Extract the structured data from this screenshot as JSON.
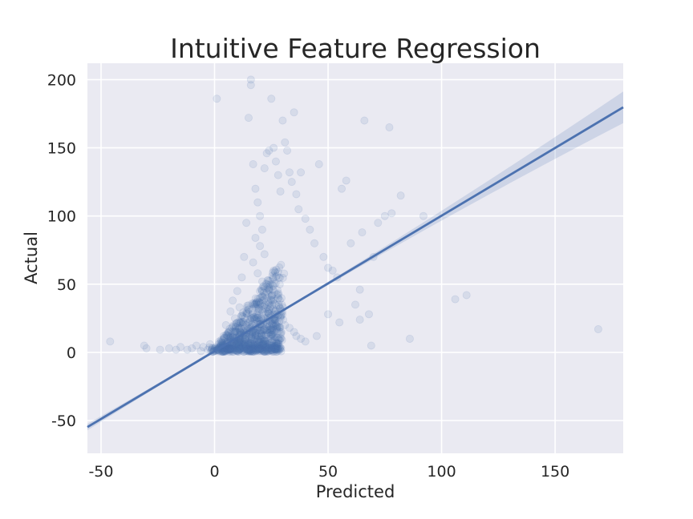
{
  "chart_data": {
    "type": "scatter",
    "title": "Intuitive Feature Regression",
    "xlabel": "Predicted",
    "ylabel": "Actual",
    "xlim": [
      -56,
      180
    ],
    "ylim": [
      -74,
      212
    ],
    "xticks": [
      -50,
      0,
      50,
      100,
      150
    ],
    "yticks": [
      -50,
      0,
      50,
      100,
      150,
      200
    ],
    "grid": true,
    "series": [
      {
        "kind": "points",
        "color": "#4c72b0",
        "points": [
          [
            -46,
            8
          ],
          [
            -31,
            5
          ],
          [
            -30,
            3
          ],
          [
            -24,
            2
          ],
          [
            -20,
            3
          ],
          [
            -17,
            2
          ],
          [
            -15,
            4
          ],
          [
            -12,
            2
          ],
          [
            -10,
            3
          ],
          [
            -8,
            5
          ],
          [
            -6,
            1
          ],
          [
            -5,
            4
          ],
          [
            -3,
            2
          ],
          [
            -2,
            6
          ],
          [
            1,
            186
          ],
          [
            2,
            8
          ],
          [
            3,
            5
          ],
          [
            4,
            12
          ],
          [
            5,
            20
          ],
          [
            6,
            14
          ],
          [
            7,
            30
          ],
          [
            8,
            38
          ],
          [
            9,
            25
          ],
          [
            10,
            45
          ],
          [
            11,
            33
          ],
          [
            12,
            55
          ],
          [
            13,
            70
          ],
          [
            14,
            95
          ],
          [
            15,
            172
          ],
          [
            16,
            200
          ],
          [
            16,
            196
          ],
          [
            17,
            138
          ],
          [
            18,
            120
          ],
          [
            19,
            110
          ],
          [
            20,
            100
          ],
          [
            21,
            90
          ],
          [
            22,
            135
          ],
          [
            23,
            146
          ],
          [
            24,
            148
          ],
          [
            25,
            186
          ],
          [
            26,
            150
          ],
          [
            27,
            140
          ],
          [
            28,
            130
          ],
          [
            29,
            118
          ],
          [
            30,
            170
          ],
          [
            31,
            154
          ],
          [
            32,
            148
          ],
          [
            33,
            132
          ],
          [
            34,
            125
          ],
          [
            35,
            176
          ],
          [
            36,
            116
          ],
          [
            37,
            105
          ],
          [
            38,
            132
          ],
          [
            40,
            98
          ],
          [
            42,
            90
          ],
          [
            44,
            80
          ],
          [
            46,
            138
          ],
          [
            48,
            70
          ],
          [
            50,
            62
          ],
          [
            52,
            60
          ],
          [
            54,
            55
          ],
          [
            55,
            22
          ],
          [
            56,
            120
          ],
          [
            58,
            126
          ],
          [
            60,
            80
          ],
          [
            62,
            35
          ],
          [
            64,
            24
          ],
          [
            65,
            88
          ],
          [
            66,
            170
          ],
          [
            68,
            28
          ],
          [
            69,
            5
          ],
          [
            70,
            70
          ],
          [
            72,
            95
          ],
          [
            75,
            100
          ],
          [
            77,
            165
          ],
          [
            78,
            102
          ],
          [
            82,
            115
          ],
          [
            86,
            10
          ],
          [
            92,
            100
          ],
          [
            106,
            39
          ],
          [
            111,
            42
          ],
          [
            169,
            17
          ],
          [
            64,
            46
          ],
          [
            50,
            28
          ],
          [
            45,
            12
          ],
          [
            40,
            8
          ],
          [
            35,
            15
          ],
          [
            28,
            40
          ],
          [
            26,
            60
          ],
          [
            24,
            48
          ],
          [
            22,
            72
          ],
          [
            20,
            78
          ],
          [
            18,
            84
          ],
          [
            17,
            66
          ],
          [
            19,
            58
          ],
          [
            21,
            52
          ],
          [
            23,
            44
          ],
          [
            25,
            38
          ],
          [
            27,
            30
          ],
          [
            29,
            26
          ],
          [
            31,
            20
          ],
          [
            33,
            18
          ],
          [
            36,
            12
          ],
          [
            38,
            10
          ]
        ]
      }
    ],
    "regression": {
      "slope": 0.9935,
      "intercept": 0.9,
      "ci_halfwidth_at_edges": 11
    }
  }
}
